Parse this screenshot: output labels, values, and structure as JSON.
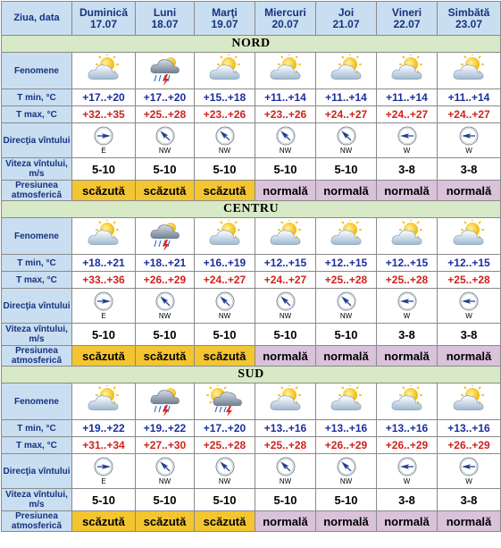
{
  "header": {
    "corner_label": "Ziua, data",
    "days": [
      {
        "name": "Duminică",
        "date": "17.07"
      },
      {
        "name": "Luni",
        "date": "18.07"
      },
      {
        "name": "Marţi",
        "date": "19.07"
      },
      {
        "name": "Miercuri",
        "date": "20.07"
      },
      {
        "name": "Joi",
        "date": "21.07"
      },
      {
        "name": "Vineri",
        "date": "22.07"
      },
      {
        "name": "Simbătă",
        "date": "23.07"
      }
    ]
  },
  "row_labels": {
    "phenomena": "Fenomene",
    "tmin": "T min, °C",
    "tmax": "T max, °C",
    "wind_dir": "Direcţia vîntului",
    "wind_speed": "Viteza vîntului, m/s",
    "pressure": "Presiunea atmosferică"
  },
  "regions": [
    {
      "name": "NORD",
      "phenomena": [
        "partly-cloudy-icon",
        "cloud-rain-thunder-icon",
        "partly-cloudy-icon",
        "partly-cloudy-icon",
        "partly-cloudy-icon",
        "partly-cloudy-icon",
        "partly-cloudy-icon"
      ],
      "tmin": [
        "+17..+20",
        "+17..+20",
        "+15..+18",
        "+11..+14",
        "+11..+14",
        "+11..+14",
        "+11..+14"
      ],
      "tmax": [
        "+32..+35",
        "+25..+28",
        "+23..+26",
        "+23..+26",
        "+24..+27",
        "+24..+27",
        "+24..+27"
      ],
      "wind_dir": [
        "E",
        "NW",
        "NW",
        "NW",
        "NW",
        "W",
        "W"
      ],
      "wind_speed": [
        "5-10",
        "5-10",
        "5-10",
        "5-10",
        "5-10",
        "3-8",
        "3-8"
      ],
      "pressure": [
        "scăzută",
        "scăzută",
        "scăzută",
        "normală",
        "normală",
        "normală",
        "normală"
      ]
    },
    {
      "name": "CENTRU",
      "phenomena": [
        "partly-cloudy-icon",
        "cloud-rain-thunder-icon",
        "partly-cloudy-icon",
        "partly-cloudy-icon",
        "partly-cloudy-icon",
        "partly-cloudy-icon",
        "partly-cloudy-icon"
      ],
      "tmin": [
        "+18..+21",
        "+18..+21",
        "+16..+19",
        "+12..+15",
        "+12..+15",
        "+12..+15",
        "+12..+15"
      ],
      "tmax": [
        "+33..+36",
        "+26..+29",
        "+24..+27",
        "+24..+27",
        "+25..+28",
        "+25..+28",
        "+25..+28"
      ],
      "wind_dir": [
        "E",
        "NW",
        "NW",
        "NW",
        "NW",
        "W",
        "W"
      ],
      "wind_speed": [
        "5-10",
        "5-10",
        "5-10",
        "5-10",
        "5-10",
        "3-8",
        "3-8"
      ],
      "pressure": [
        "scăzută",
        "scăzută",
        "scăzută",
        "normală",
        "normală",
        "normală",
        "normală"
      ]
    },
    {
      "name": "SUD",
      "phenomena": [
        "partly-cloudy-icon",
        "cloud-rain-thunder-icon",
        "sun-cloud-thunder-icon",
        "partly-cloudy-icon",
        "partly-cloudy-icon",
        "partly-cloudy-icon",
        "partly-cloudy-icon"
      ],
      "tmin": [
        "+19..+22",
        "+19..+22",
        "+17..+20",
        "+13..+16",
        "+13..+16",
        "+13..+16",
        "+13..+16"
      ],
      "tmax": [
        "+31..+34",
        "+27..+30",
        "+25..+28",
        "+25..+28",
        "+26..+29",
        "+26..+29",
        "+26..+29"
      ],
      "wind_dir": [
        "E",
        "NW",
        "NW",
        "NW",
        "NW",
        "W",
        "W"
      ],
      "wind_speed": [
        "5-10",
        "5-10",
        "5-10",
        "5-10",
        "5-10",
        "3-8",
        "3-8"
      ],
      "pressure": [
        "scăzută",
        "scăzută",
        "scăzută",
        "normală",
        "normală",
        "normală",
        "normală"
      ]
    }
  ],
  "colors": {
    "header_bg": "#c9def1",
    "region_bg": "#d7e9c6",
    "pressure_low": "#f3c531",
    "pressure_normal": "#d9c2da",
    "tmin_text": "#1b2e9e",
    "tmax_text": "#d0221c"
  }
}
